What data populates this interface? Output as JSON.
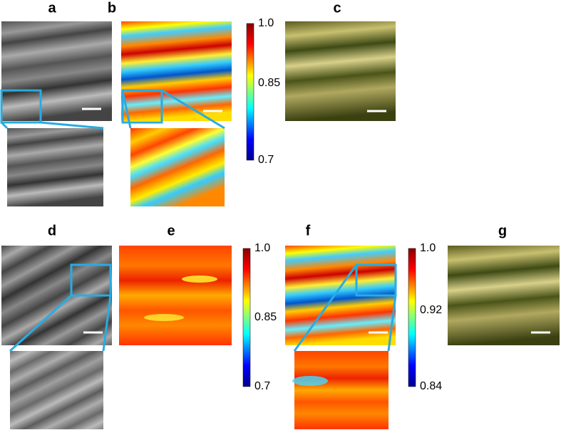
{
  "panels": [
    {
      "label": "a"
    },
    {
      "label": "b"
    },
    {
      "label": "c"
    },
    {
      "label": "d"
    },
    {
      "label": "e"
    },
    {
      "label": "f"
    },
    {
      "label": "g"
    }
  ],
  "colorbars": [
    {
      "ticks": [
        "1.0",
        "0.85",
        "0.7"
      ]
    },
    {
      "ticks": [
        "1.0",
        "0.85",
        "0.7"
      ]
    },
    {
      "ticks": [
        "1.0",
        "0.92",
        "0.84"
      ]
    }
  ]
}
